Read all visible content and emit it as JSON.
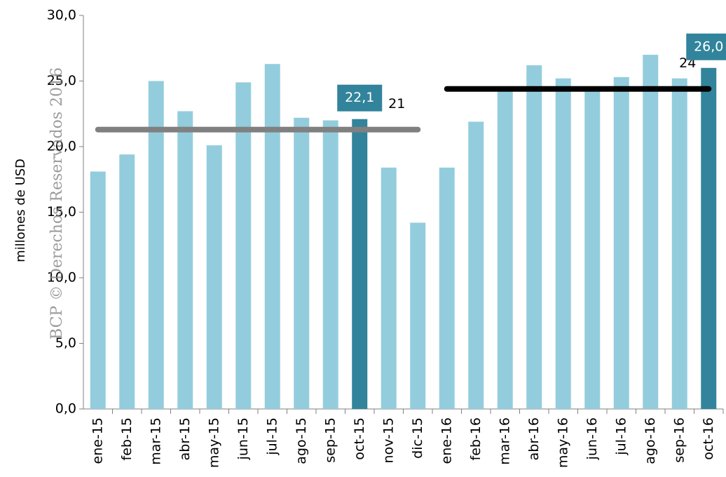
{
  "chart_data": {
    "type": "bar",
    "y_label": "millones de USD",
    "watermark": "BCP © Derechos Reservados 2016",
    "categories": [
      "ene-15",
      "feb-15",
      "mar-15",
      "abr-15",
      "may-15",
      "jun-15",
      "jul-15",
      "ago-15",
      "sep-15",
      "oct-15",
      "nov-15",
      "dic-15",
      "ene-16",
      "feb-16",
      "mar-16",
      "abr-16",
      "may-16",
      "jun-16",
      "jul-16",
      "ago-16",
      "sep-16",
      "oct-16"
    ],
    "values": [
      18.1,
      19.4,
      25.0,
      22.7,
      20.1,
      24.9,
      26.3,
      22.2,
      22.0,
      22.1,
      18.4,
      14.2,
      18.4,
      21.9,
      24.5,
      26.2,
      25.2,
      24.3,
      25.3,
      27.0,
      25.2,
      26.0
    ],
    "value_labels": [
      null,
      null,
      null,
      null,
      null,
      null,
      null,
      null,
      null,
      "22,1",
      null,
      null,
      null,
      null,
      null,
      null,
      null,
      null,
      null,
      null,
      null,
      "26,0"
    ],
    "color": "#93cddd",
    "highlight_color": "#31849b",
    "highlight": [
      9,
      21
    ],
    "reference_lines": [
      {
        "value": 21.3,
        "label": "21",
        "color": "#808080",
        "from": 0,
        "to": 11
      },
      {
        "value": 24.4,
        "label": "24",
        "color": "#000000",
        "from": 12,
        "to": 21
      }
    ],
    "ylim": [
      0,
      30
    ],
    "yticks": [
      {
        "value": 0,
        "label": "0,0"
      },
      {
        "value": 5,
        "label": "5,0"
      },
      {
        "value": 10,
        "label": "10,0"
      },
      {
        "value": 15,
        "label": "15,0"
      },
      {
        "value": 20,
        "label": "20,0"
      },
      {
        "value": 25,
        "label": "25,0"
      },
      {
        "value": 30,
        "label": "30,0"
      }
    ]
  }
}
